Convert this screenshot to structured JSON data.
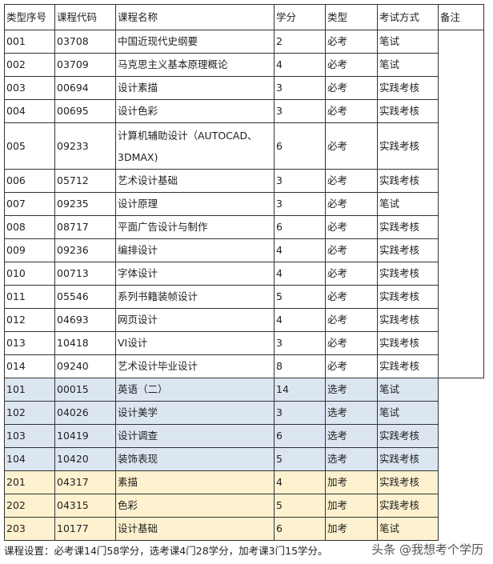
{
  "table": {
    "header": [
      "类型序号",
      "课程代码",
      "课程名称",
      "学分",
      "类型",
      "考试方式",
      "备注"
    ],
    "rows": [
      [
        "001",
        "03708",
        "中国近现代史纲要",
        "2",
        "必考",
        "笔试"
      ],
      [
        "002",
        "03709",
        "马克思主义基本原理概论",
        "4",
        "必考",
        "笔试"
      ],
      [
        "003",
        "00694",
        "设计素描",
        "3",
        "必考",
        "实践考核"
      ],
      [
        "004",
        "00695",
        "设计色彩",
        "3",
        "必考",
        "实践考核"
      ],
      [
        "005",
        "09233",
        "计算机辅助设计（AUTOCAD、3DMAX)",
        "6",
        "必考",
        "实践考核"
      ],
      [
        "006",
        "05712",
        "艺术设计基础",
        "3",
        "必考",
        "实践考核"
      ],
      [
        "007",
        "09235",
        "设计原理",
        "3",
        "必考",
        "笔试"
      ],
      [
        "008",
        "08717",
        "平面广告设计与制作",
        "6",
        "必考",
        "实践考核"
      ],
      [
        "009",
        "09236",
        "编排设计",
        "4",
        "必考",
        "实践考核"
      ],
      [
        "010",
        "00713",
        "字体设计",
        "4",
        "必考",
        "实践考核"
      ],
      [
        "011",
        "05546",
        "系列书籍装帧设计",
        "5",
        "必考",
        "实践考核"
      ],
      [
        "012",
        "04693",
        "网页设计",
        "4",
        "必考",
        "实践考核"
      ],
      [
        "013",
        "10418",
        "VI设计",
        "3",
        "必考",
        "实践考核"
      ],
      [
        "014",
        "09240",
        "艺术设计毕业设计",
        "8",
        "必考",
        "实践考核"
      ],
      [
        "101",
        "00015",
        "英语（二）",
        "14",
        "选考",
        "笔试"
      ],
      [
        "102",
        "04026",
        "设计美学",
        "3",
        "选考",
        "笔试"
      ],
      [
        "103",
        "10419",
        "设计调查",
        "6",
        "选考",
        "实践考核"
      ],
      [
        "104",
        "10420",
        "装饰表现",
        "5",
        "选考",
        "实践考核"
      ],
      [
        "201",
        "04317",
        "素描",
        "4",
        "加考",
        "实践考核"
      ],
      [
        "202",
        "04315",
        "色彩",
        "5",
        "加考",
        "实践考核"
      ],
      [
        "203",
        "10177",
        "设计基础",
        "6",
        "加考",
        "笔试"
      ]
    ]
  },
  "footer": "课程设置：必考课14门58学分，选考课4门28学分，加考课3门15学分。",
  "watermark": "头条 @我想考个学历"
}
